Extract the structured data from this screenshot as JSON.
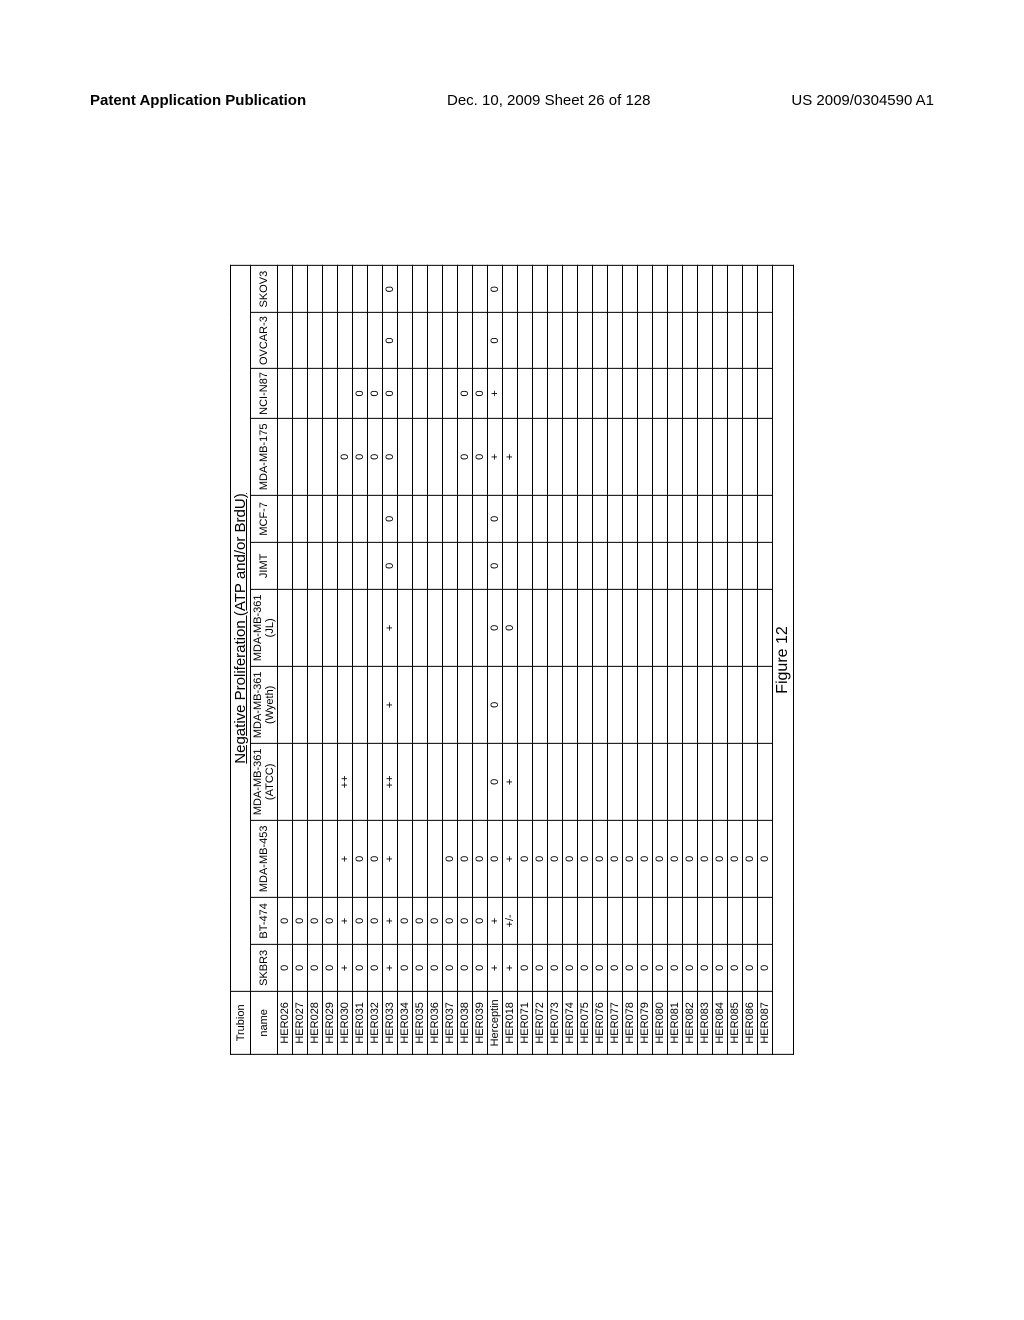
{
  "header": {
    "left": "Patent Application Publication",
    "mid": "Dec. 10, 2009  Sheet 26 of 128",
    "right": "US 2009/0304590 A1"
  },
  "figureCaption": "Figure 12",
  "table": {
    "topLabel": "Trubion",
    "title": "Negative Proliferation (ATP and/or BrdU)",
    "cols": [
      "name",
      "SKBR3",
      "BT-474",
      "MDA-MB-453",
      "MDA-MB-361",
      "MDA-MB-361",
      "MDA-MB-361",
      "JIMT",
      "MCF-7",
      "MDA-MB-175",
      "NCI-N87",
      "OVCAR-3",
      "SKOV3"
    ],
    "cols.4a": "MDA-MB-361",
    "cols.4b": "(ATCC)",
    "cols.5a": "MDA-MB-361",
    "cols.5b": "(Wyeth)",
    "cols.6a": "MDA-MB-361",
    "cols.6b": "(JL)",
    "groups": [
      {
        "rows": [
          {
            "n": "HER026",
            "v": [
              "0",
              "0",
              "",
              "",
              "",
              "",
              "",
              "",
              "",
              "",
              "",
              ""
            ]
          },
          {
            "n": "HER027",
            "v": [
              "0",
              "0",
              "",
              "",
              "",
              "",
              "",
              "",
              "",
              "",
              "",
              ""
            ]
          },
          {
            "n": "HER028",
            "v": [
              "0",
              "0",
              "",
              "",
              "",
              "",
              "",
              "",
              "",
              "",
              "",
              ""
            ]
          },
          {
            "n": "HER029",
            "v": [
              "0",
              "0",
              "",
              "",
              "",
              "",
              "",
              "",
              "",
              "",
              "",
              ""
            ]
          },
          {
            "n": "HER030",
            "v": [
              "+",
              "+",
              "+",
              "++",
              "",
              "",
              "",
              "",
              "0",
              "",
              "",
              ""
            ]
          },
          {
            "n": "HER031",
            "v": [
              "0",
              "0",
              "0",
              "",
              "",
              "",
              "",
              "",
              "0",
              "0",
              "",
              ""
            ]
          },
          {
            "n": "HER032",
            "v": [
              "0",
              "0",
              "0",
              "",
              "",
              "",
              "",
              "",
              "0",
              "0",
              "",
              ""
            ]
          },
          {
            "n": "HER033",
            "v": [
              "+",
              "+",
              "+",
              "++",
              "+",
              "+",
              "0",
              "0",
              "0",
              "0",
              "0",
              "0"
            ]
          },
          {
            "n": "HER034",
            "v": [
              "0",
              "0",
              "",
              "",
              "",
              "",
              "",
              "",
              "",
              "",
              "",
              ""
            ]
          },
          {
            "n": "HER035",
            "v": [
              "0",
              "0",
              "",
              "",
              "",
              "",
              "",
              "",
              "",
              "",
              "",
              ""
            ]
          },
          {
            "n": "HER036",
            "v": [
              "0",
              "0",
              "",
              "",
              "",
              "",
              "",
              "",
              "",
              "",
              "",
              ""
            ]
          },
          {
            "n": "HER037",
            "v": [
              "0",
              "0",
              "0",
              "",
              "",
              "",
              "",
              "",
              "",
              "",
              "",
              ""
            ]
          },
          {
            "n": "HER038",
            "v": [
              "0",
              "0",
              "0",
              "",
              "",
              "",
              "",
              "",
              "0",
              "0",
              "",
              ""
            ]
          },
          {
            "n": "HER039",
            "v": [
              "0",
              "0",
              "0",
              "",
              "",
              "",
              "",
              "",
              "0",
              "0",
              "",
              ""
            ]
          }
        ]
      },
      {
        "rows": [
          {
            "n": "Herceptin",
            "v": [
              "+",
              "+",
              "0",
              "0",
              "0",
              "0",
              "0",
              "0",
              "+",
              "+",
              "0",
              "0"
            ]
          },
          {
            "n": "HER018",
            "v": [
              "+",
              "+/-",
              "+",
              "+",
              "",
              "0",
              "",
              "",
              "+",
              "",
              "",
              ""
            ]
          }
        ]
      },
      {
        "rows": [
          {
            "n": "HER071",
            "v": [
              "0",
              "",
              "0",
              "",
              "",
              "",
              "",
              "",
              "",
              "",
              "",
              ""
            ]
          },
          {
            "n": "HER072",
            "v": [
              "0",
              "",
              "0",
              "",
              "",
              "",
              "",
              "",
              "",
              "",
              "",
              ""
            ]
          },
          {
            "n": "HER073",
            "v": [
              "0",
              "",
              "0",
              "",
              "",
              "",
              "",
              "",
              "",
              "",
              "",
              ""
            ]
          },
          {
            "n": "HER074",
            "v": [
              "0",
              "",
              "0",
              "",
              "",
              "",
              "",
              "",
              "",
              "",
              "",
              ""
            ]
          },
          {
            "n": "HER075",
            "v": [
              "0",
              "",
              "0",
              "",
              "",
              "",
              "",
              "",
              "",
              "",
              "",
              ""
            ]
          },
          {
            "n": "HER076",
            "v": [
              "0",
              "",
              "0",
              "",
              "",
              "",
              "",
              "",
              "",
              "",
              "",
              ""
            ]
          },
          {
            "n": "HER077",
            "v": [
              "0",
              "",
              "0",
              "",
              "",
              "",
              "",
              "",
              "",
              "",
              "",
              ""
            ]
          },
          {
            "n": "HER078",
            "v": [
              "0",
              "",
              "0",
              "",
              "",
              "",
              "",
              "",
              "",
              "",
              "",
              ""
            ]
          },
          {
            "n": "HER079",
            "v": [
              "0",
              "",
              "0",
              "",
              "",
              "",
              "",
              "",
              "",
              "",
              "",
              ""
            ]
          },
          {
            "n": "HER080",
            "v": [
              "0",
              "",
              "0",
              "",
              "",
              "",
              "",
              "",
              "",
              "",
              "",
              ""
            ]
          },
          {
            "n": "HER081",
            "v": [
              "0",
              "",
              "0",
              "",
              "",
              "",
              "",
              "",
              "",
              "",
              "",
              ""
            ]
          },
          {
            "n": "HER082",
            "v": [
              "0",
              "",
              "0",
              "",
              "",
              "",
              "",
              "",
              "",
              "",
              "",
              ""
            ]
          },
          {
            "n": "HER083",
            "v": [
              "0",
              "",
              "0",
              "",
              "",
              "",
              "",
              "",
              "",
              "",
              "",
              ""
            ]
          },
          {
            "n": "HER084",
            "v": [
              "0",
              "",
              "0",
              "",
              "",
              "",
              "",
              "",
              "",
              "",
              "",
              ""
            ]
          },
          {
            "n": "HER085",
            "v": [
              "0",
              "",
              "0",
              "",
              "",
              "",
              "",
              "",
              "",
              "",
              "",
              ""
            ]
          },
          {
            "n": "HER086",
            "v": [
              "0",
              "",
              "0",
              "",
              "",
              "",
              "",
              "",
              "",
              "",
              "",
              ""
            ]
          },
          {
            "n": "HER087",
            "v": [
              "0",
              "",
              "0",
              "",
              "",
              "",
              "",
              "",
              "",
              "",
              "",
              ""
            ]
          }
        ]
      }
    ],
    "style": {
      "type": "table",
      "fontSize": 11,
      "titleFontSize": 15,
      "borderColor": "#000000",
      "background": "#ffffff",
      "textColor": "#000000",
      "rotation": -90
    }
  }
}
